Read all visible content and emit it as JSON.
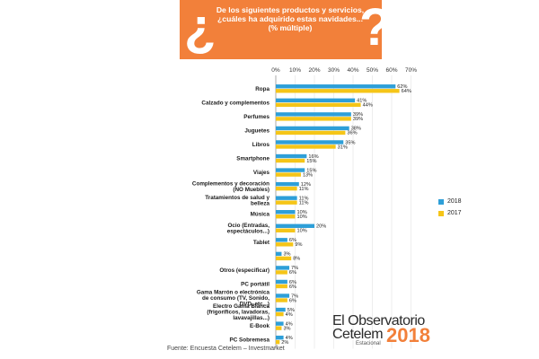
{
  "header": {
    "question": "De los siguientes productos y servicios, ¿cuáles ha adquirido estas navidades... (% múltiple)",
    "qmark_open": "¿",
    "qmark_close": "?",
    "accent_color": "#f2803a"
  },
  "chart_data": {
    "type": "bar",
    "orientation": "horizontal",
    "title": "",
    "xlabel": "",
    "ylabel": "",
    "xlim": [
      0,
      70
    ],
    "xticks": [
      "0%",
      "10%",
      "20%",
      "30%",
      "40%",
      "50%",
      "60%",
      "70%"
    ],
    "grid": true,
    "legend_position": "right",
    "categories": [
      "Ropa",
      "Calzado y complementos",
      "Perfumes",
      "Juguetes",
      "Libros",
      "Smartphone",
      "Viajes",
      "Complementos y decoración (NO Muebles)",
      "Tratamientos de salud y belleza",
      "Música",
      "Ocio (Entradas, espectáculos...)",
      "Tablet",
      "",
      "Otros (especificar)",
      "PC portátil",
      "Gama Marrón o electrónica de consumo (TV, Sonido, DVD, etc...)",
      "Electro Gama Blanca (frigoríficos, lavadoras, lavavajillas...)",
      "E-Book",
      "PC Sobremesa"
    ],
    "series": [
      {
        "name": "2018",
        "color": "#2e9fd8",
        "values": [
          62,
          41,
          39,
          38,
          35,
          16,
          15,
          12,
          11,
          10,
          20,
          6,
          3,
          7,
          6,
          7,
          5,
          4,
          4
        ],
        "labels": [
          "62%",
          "41%",
          "39%",
          "38%",
          "35%",
          "16%",
          "15%",
          "12%",
          "11%",
          "10%",
          "20%",
          "6%",
          "3%",
          "7%",
          "6%",
          "7%",
          "5%",
          "4%",
          "4%"
        ]
      },
      {
        "name": "2017",
        "color": "#f5c518",
        "values": [
          64,
          44,
          39,
          36,
          31,
          15,
          13,
          11,
          11,
          10,
          10,
          9,
          8,
          6,
          6,
          6,
          4,
          3,
          2
        ],
        "labels": [
          "64%",
          "44%",
          "39%",
          "36%",
          "31%",
          "15%",
          "13%",
          "11%",
          "11%",
          "10%",
          "10%",
          "9%",
          "8%",
          "6%",
          "6%",
          "6%",
          "4%",
          "3%",
          "2%"
        ]
      }
    ]
  },
  "legend": [
    {
      "label": "2018",
      "color": "#2e9fd8"
    },
    {
      "label": "2017",
      "color": "#f5c518"
    }
  ],
  "logo": {
    "line1": "El Observatorio",
    "line2": "Cetelem",
    "sub": "Estacional",
    "year": "2018"
  },
  "source": "Fuente: Encuesta Cetelem – Investmarket"
}
